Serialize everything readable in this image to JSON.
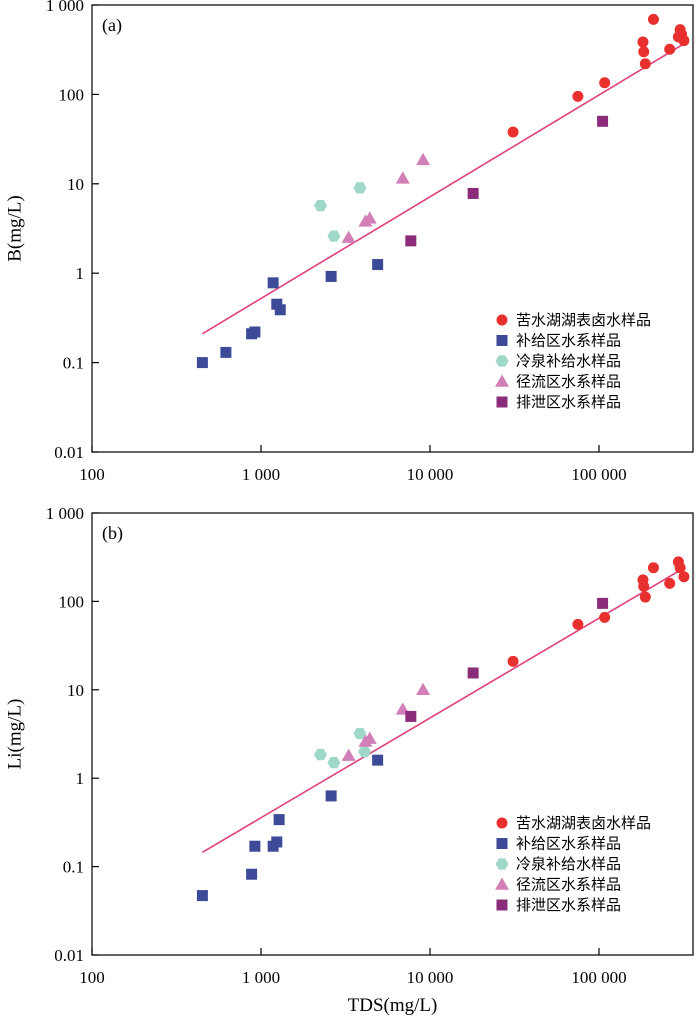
{
  "colors": {
    "salt_lake": "#e8312f",
    "recharge": "#3d4a97",
    "cold_spring": "#9fd8c8",
    "runoff": "#d27fb8",
    "discharge": "#8b2c7b",
    "fit_line": "#e0407a"
  },
  "x_axis": {
    "label": "TDS(mg/L)",
    "ticks": [
      100,
      1000,
      10000,
      100000
    ],
    "tick_labels": [
      "100",
      "1 000",
      "10 000",
      "100 000"
    ]
  },
  "y_ticks": [
    0.01,
    0.1,
    1,
    10,
    100,
    1000
  ],
  "y_tick_labels": [
    "0.01",
    "0.1",
    "1",
    "10",
    "100",
    "1 000"
  ],
  "legend": [
    {
      "key": "salt_lake",
      "label": "苦水湖湖表卤水样品",
      "marker": "circle"
    },
    {
      "key": "recharge",
      "label": "补给区水系样品",
      "marker": "square"
    },
    {
      "key": "cold_spring",
      "label": "冷泉补给水样品",
      "marker": "hexagon"
    },
    {
      "key": "runoff",
      "label": "径流区水系样品",
      "marker": "triangle"
    },
    {
      "key": "discharge",
      "label": "排泄区水系样品",
      "marker": "square"
    }
  ],
  "chart_data": [
    {
      "type": "scatter",
      "panel_label": "(a)",
      "xlabel": "",
      "ylabel": "B(mg/L)",
      "x_scale": "log",
      "y_scale": "log",
      "xlim": [
        100,
        330000
      ],
      "ylim": [
        0.01,
        1000
      ],
      "legend_position": "bottom-right",
      "fit_line": {
        "x": [
          450,
          320000
        ],
        "y": [
          0.21,
          370
        ]
      },
      "series": [
        {
          "name": "苦水湖湖表卤水样品",
          "key": "salt_lake",
          "x": [
            31000,
            75000,
            108000,
            182000,
            184000,
            188000,
            210000,
            262000,
            295000,
            302000,
            308000,
            318000
          ],
          "y": [
            38,
            95,
            135,
            385,
            300,
            220,
            690,
            320,
            440,
            530,
            470,
            400
          ]
        },
        {
          "name": "补给区水系样品",
          "key": "recharge",
          "x": [
            450,
            620,
            880,
            920,
            1180,
            1240,
            1300,
            2600,
            4900
          ],
          "y": [
            0.1,
            0.13,
            0.21,
            0.22,
            0.78,
            0.45,
            0.39,
            0.92,
            1.25
          ]
        },
        {
          "name": "冷泉补给水样品",
          "key": "cold_spring",
          "x": [
            2250,
            2700,
            3850
          ],
          "y": [
            5.7,
            2.6,
            9.0
          ]
        },
        {
          "name": "径流区水系样品",
          "key": "runoff",
          "x": [
            3300,
            4150,
            4400,
            6900,
            9100
          ],
          "y": [
            2.5,
            3.8,
            4.1,
            11.5,
            18.5
          ]
        },
        {
          "name": "排泄区水系样品",
          "key": "discharge",
          "x": [
            7700,
            18000,
            105000
          ],
          "y": [
            2.3,
            7.8,
            50
          ]
        }
      ]
    },
    {
      "type": "scatter",
      "panel_label": "(b)",
      "xlabel": "TDS(mg/L)",
      "ylabel": "Li(mg/L)",
      "x_scale": "log",
      "y_scale": "log",
      "xlim": [
        100,
        330000
      ],
      "ylim": [
        0.01,
        1000
      ],
      "legend_position": "bottom-right",
      "fit_line": {
        "x": [
          450,
          320000
        ],
        "y": [
          0.145,
          240
        ]
      },
      "series": [
        {
          "name": "苦水湖湖表卤水样品",
          "key": "salt_lake",
          "x": [
            31000,
            75000,
            108000,
            182000,
            184000,
            188000,
            210000,
            262000,
            295000,
            302000,
            318000
          ],
          "y": [
            21,
            55,
            66,
            175,
            148,
            112,
            240,
            160,
            280,
            240,
            190
          ]
        },
        {
          "name": "补给区水系样品",
          "key": "recharge",
          "x": [
            450,
            880,
            920,
            1180,
            1240,
            1280,
            2600,
            4900
          ],
          "y": [
            0.047,
            0.082,
            0.17,
            0.17,
            0.19,
            0.34,
            0.63,
            1.6
          ]
        },
        {
          "name": "冷泉补给水样品",
          "key": "cold_spring",
          "x": [
            2250,
            2700,
            3850,
            4100
          ],
          "y": [
            1.85,
            1.5,
            3.2,
            2.0
          ]
        },
        {
          "name": "径流区水系样品",
          "key": "runoff",
          "x": [
            3300,
            4150,
            4400,
            6900,
            9100
          ],
          "y": [
            1.8,
            2.6,
            2.8,
            6.0,
            10
          ]
        },
        {
          "name": "排泄区水系样品",
          "key": "discharge",
          "x": [
            7700,
            18000,
            105000
          ],
          "y": [
            5.0,
            15.5,
            95
          ]
        }
      ]
    }
  ]
}
